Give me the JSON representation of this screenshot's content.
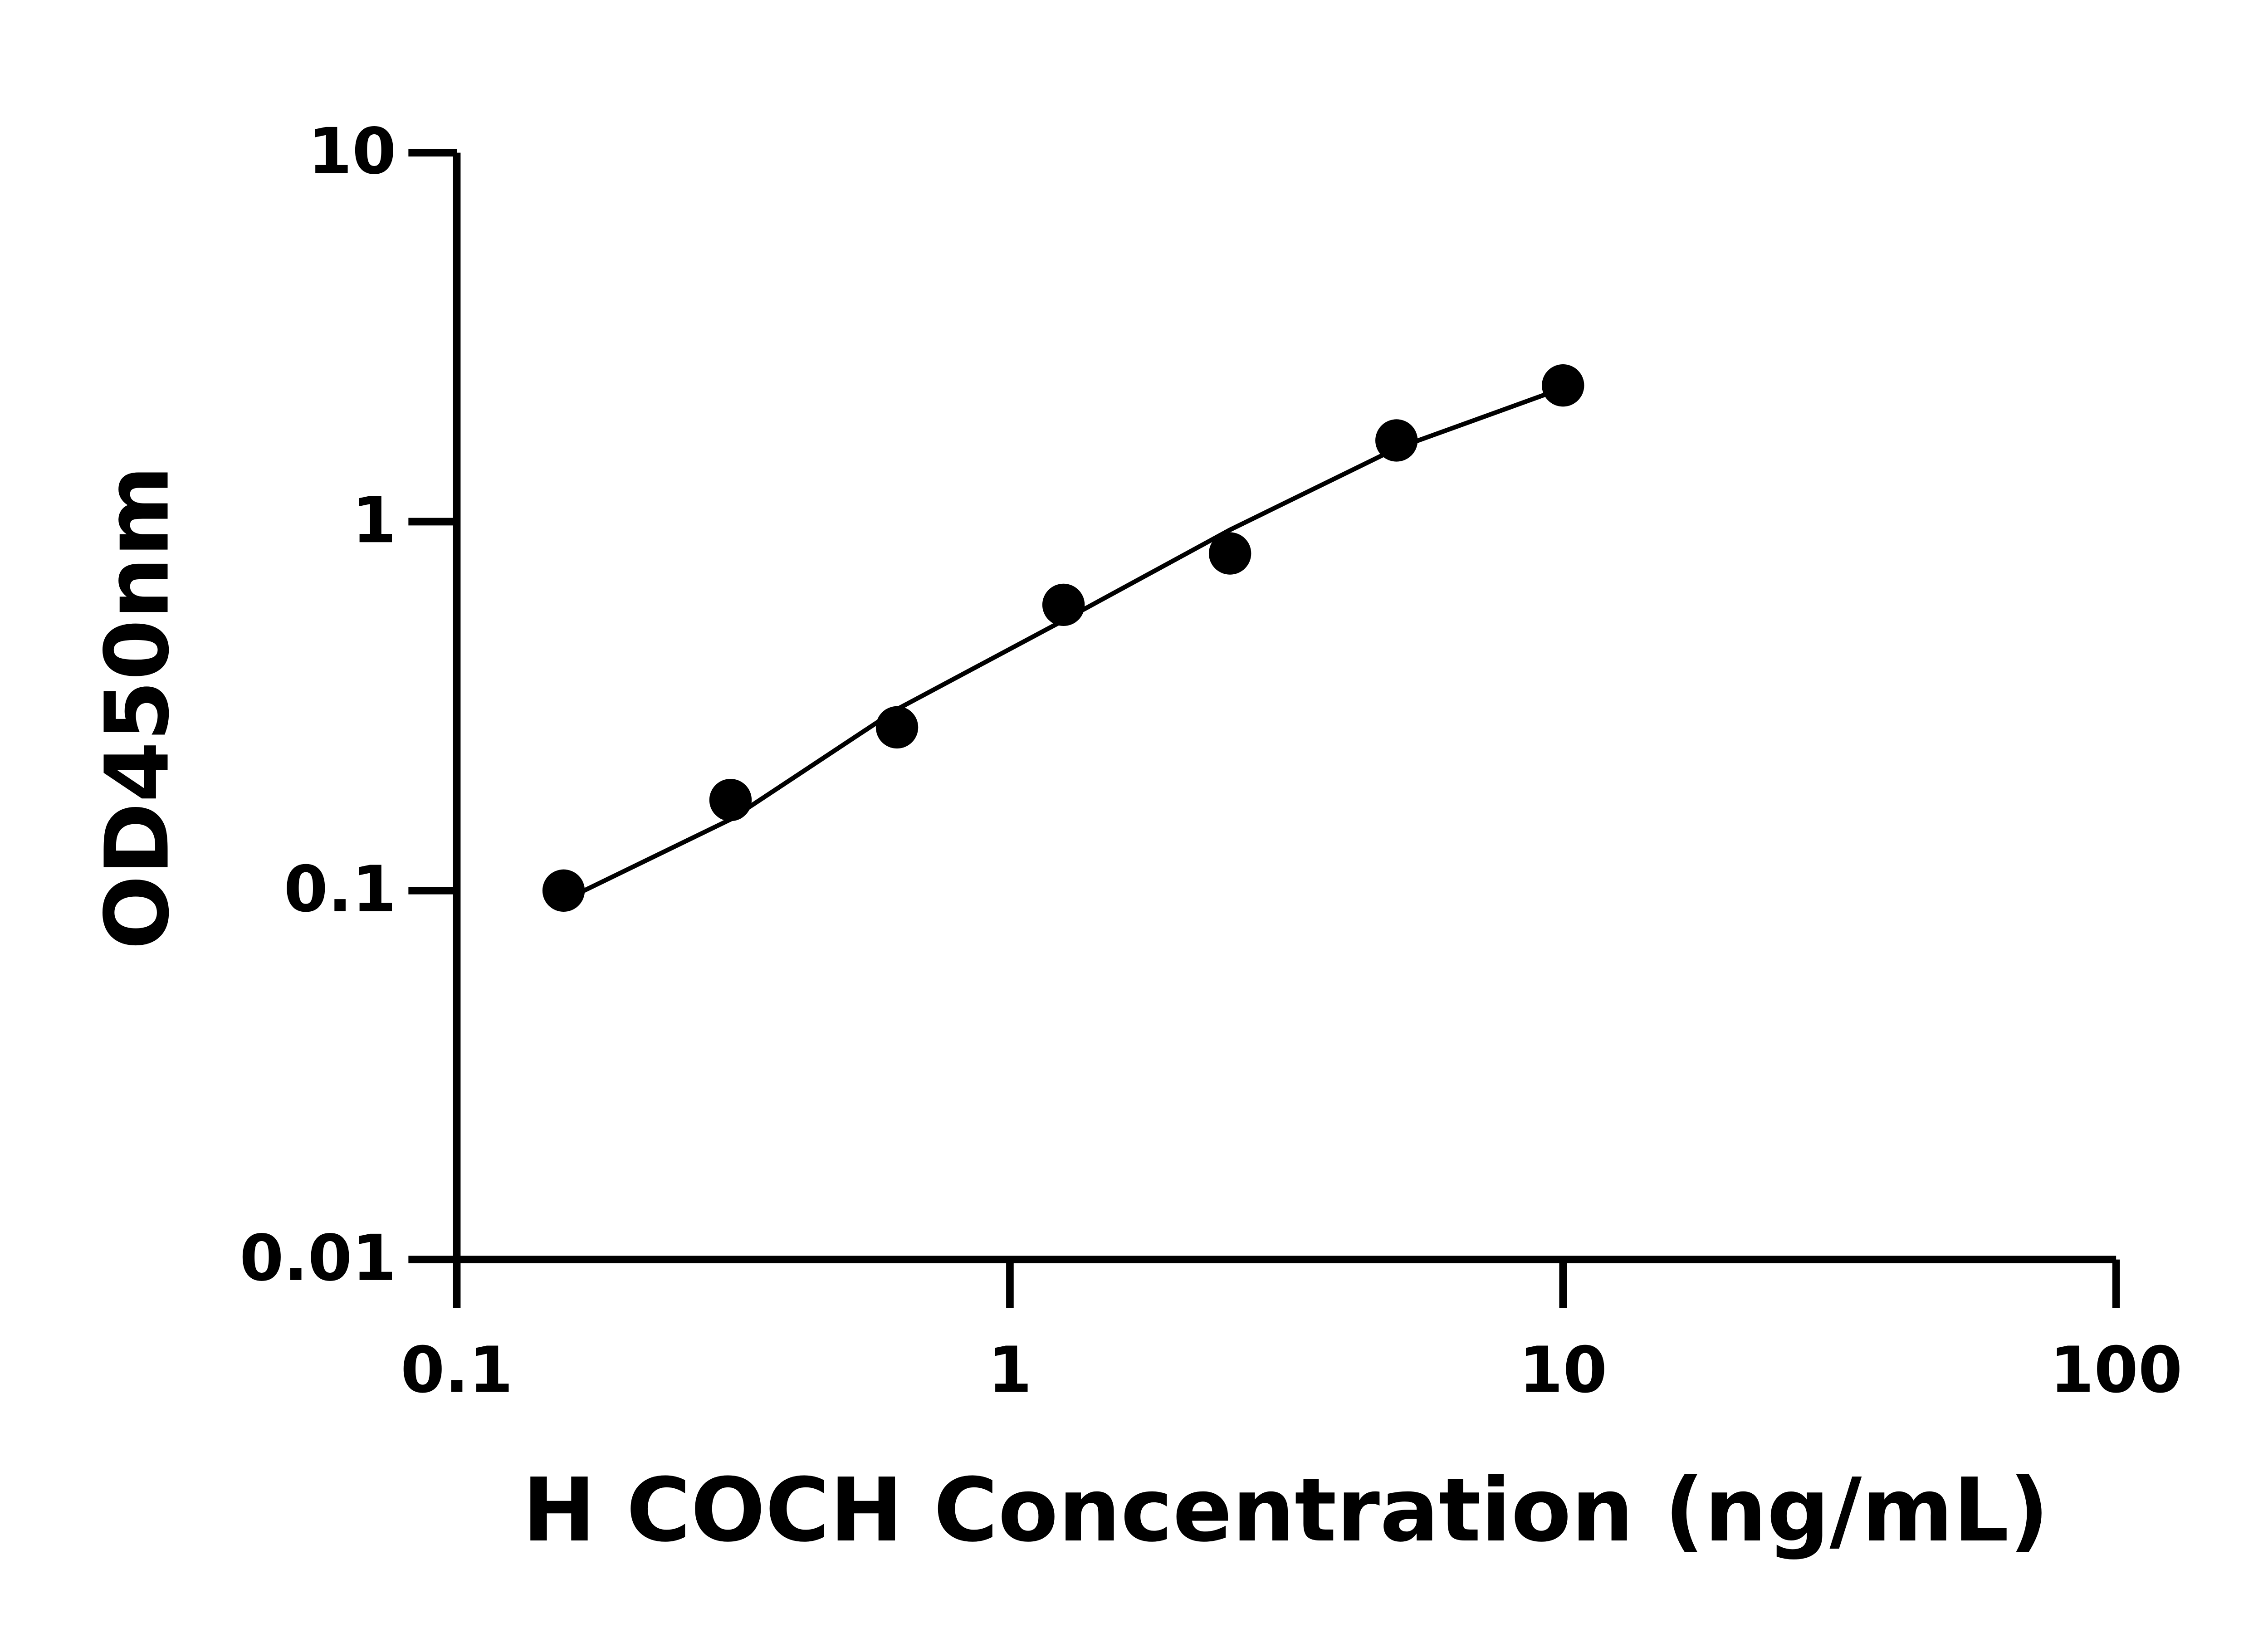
{
  "chart_data": {
    "type": "scatter",
    "x_label": "H COCH Concentration (ng/mL)",
    "y_label": "OD450nm",
    "x": [
      0.156,
      0.3125,
      0.625,
      1.25,
      2.5,
      5,
      10
    ],
    "values": [
      0.1,
      0.176,
      0.277,
      0.595,
      0.82,
      1.66,
      2.34
    ],
    "color": "#000000",
    "fit": {
      "x": [
        0.156,
        0.3125,
        0.625,
        1.25,
        2.5,
        5,
        10
      ],
      "y": [
        0.094,
        0.156,
        0.31,
        0.54,
        0.95,
        1.58,
        2.3
      ]
    },
    "xscale": "log",
    "yscale": "log",
    "xlim": [
      0.1,
      100
    ],
    "ylim": [
      0.01,
      10
    ],
    "xticks": [
      0.1,
      1,
      10,
      100
    ],
    "yticks": [
      0.01,
      0.1,
      1,
      10
    ],
    "grid": false
  }
}
